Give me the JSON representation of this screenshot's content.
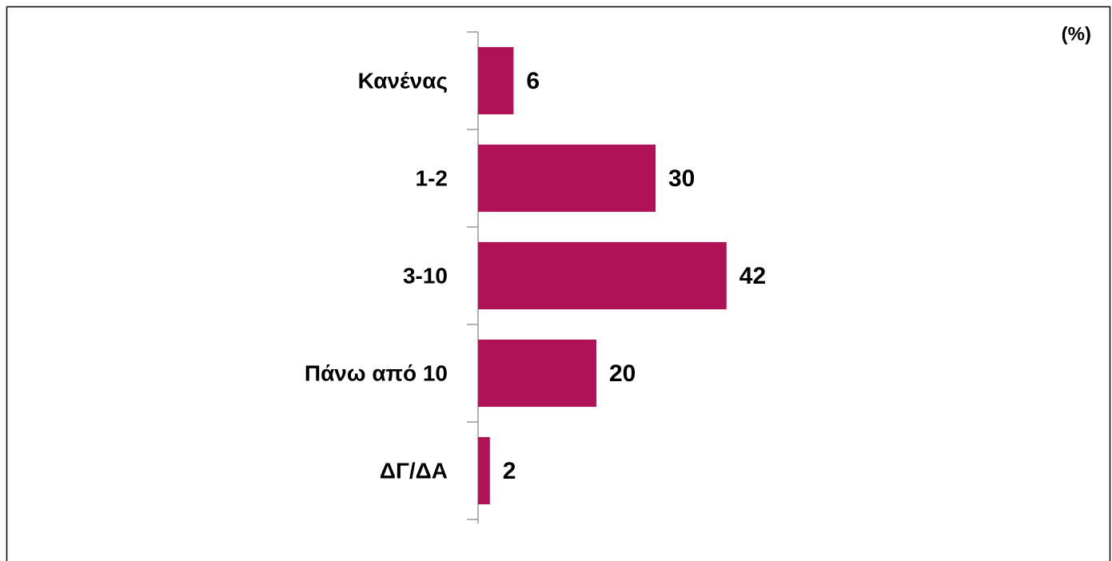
{
  "chart_data": {
    "type": "bar",
    "orientation": "horizontal",
    "unit_label": "(%)",
    "categories": [
      "Κανένας",
      "1-2",
      "3-10",
      "Πάνω από 10",
      "ΔΓ/ΔΑ"
    ],
    "values": [
      6,
      30,
      42,
      20,
      2
    ],
    "color": "#b01257",
    "xlim": [
      0,
      100
    ]
  }
}
